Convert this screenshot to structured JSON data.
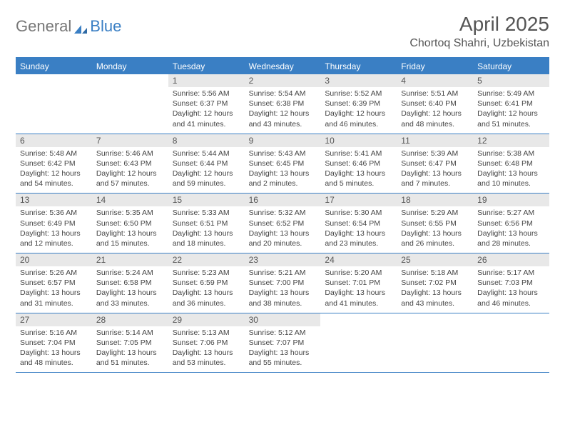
{
  "logo": {
    "part1": "General",
    "part2": "Blue"
  },
  "title": {
    "month": "April 2025",
    "location": "Chortoq Shahri, Uzbekistan"
  },
  "colors": {
    "primary": "#3a7fc4",
    "header_bg": "#3a7fc4",
    "daybar_bg": "#e8e8e8",
    "text": "#444444",
    "title_text": "#555555",
    "background": "#ffffff"
  },
  "days_of_week": [
    "Sunday",
    "Monday",
    "Tuesday",
    "Wednesday",
    "Thursday",
    "Friday",
    "Saturday"
  ],
  "weeks": [
    [
      null,
      null,
      {
        "n": "1",
        "sunrise": "5:56 AM",
        "sunset": "6:37 PM",
        "daylight": "12 hours and 41 minutes."
      },
      {
        "n": "2",
        "sunrise": "5:54 AM",
        "sunset": "6:38 PM",
        "daylight": "12 hours and 43 minutes."
      },
      {
        "n": "3",
        "sunrise": "5:52 AM",
        "sunset": "6:39 PM",
        "daylight": "12 hours and 46 minutes."
      },
      {
        "n": "4",
        "sunrise": "5:51 AM",
        "sunset": "6:40 PM",
        "daylight": "12 hours and 48 minutes."
      },
      {
        "n": "5",
        "sunrise": "5:49 AM",
        "sunset": "6:41 PM",
        "daylight": "12 hours and 51 minutes."
      }
    ],
    [
      {
        "n": "6",
        "sunrise": "5:48 AM",
        "sunset": "6:42 PM",
        "daylight": "12 hours and 54 minutes."
      },
      {
        "n": "7",
        "sunrise": "5:46 AM",
        "sunset": "6:43 PM",
        "daylight": "12 hours and 57 minutes."
      },
      {
        "n": "8",
        "sunrise": "5:44 AM",
        "sunset": "6:44 PM",
        "daylight": "12 hours and 59 minutes."
      },
      {
        "n": "9",
        "sunrise": "5:43 AM",
        "sunset": "6:45 PM",
        "daylight": "13 hours and 2 minutes."
      },
      {
        "n": "10",
        "sunrise": "5:41 AM",
        "sunset": "6:46 PM",
        "daylight": "13 hours and 5 minutes."
      },
      {
        "n": "11",
        "sunrise": "5:39 AM",
        "sunset": "6:47 PM",
        "daylight": "13 hours and 7 minutes."
      },
      {
        "n": "12",
        "sunrise": "5:38 AM",
        "sunset": "6:48 PM",
        "daylight": "13 hours and 10 minutes."
      }
    ],
    [
      {
        "n": "13",
        "sunrise": "5:36 AM",
        "sunset": "6:49 PM",
        "daylight": "13 hours and 12 minutes."
      },
      {
        "n": "14",
        "sunrise": "5:35 AM",
        "sunset": "6:50 PM",
        "daylight": "13 hours and 15 minutes."
      },
      {
        "n": "15",
        "sunrise": "5:33 AM",
        "sunset": "6:51 PM",
        "daylight": "13 hours and 18 minutes."
      },
      {
        "n": "16",
        "sunrise": "5:32 AM",
        "sunset": "6:52 PM",
        "daylight": "13 hours and 20 minutes."
      },
      {
        "n": "17",
        "sunrise": "5:30 AM",
        "sunset": "6:54 PM",
        "daylight": "13 hours and 23 minutes."
      },
      {
        "n": "18",
        "sunrise": "5:29 AM",
        "sunset": "6:55 PM",
        "daylight": "13 hours and 26 minutes."
      },
      {
        "n": "19",
        "sunrise": "5:27 AM",
        "sunset": "6:56 PM",
        "daylight": "13 hours and 28 minutes."
      }
    ],
    [
      {
        "n": "20",
        "sunrise": "5:26 AM",
        "sunset": "6:57 PM",
        "daylight": "13 hours and 31 minutes."
      },
      {
        "n": "21",
        "sunrise": "5:24 AM",
        "sunset": "6:58 PM",
        "daylight": "13 hours and 33 minutes."
      },
      {
        "n": "22",
        "sunrise": "5:23 AM",
        "sunset": "6:59 PM",
        "daylight": "13 hours and 36 minutes."
      },
      {
        "n": "23",
        "sunrise": "5:21 AM",
        "sunset": "7:00 PM",
        "daylight": "13 hours and 38 minutes."
      },
      {
        "n": "24",
        "sunrise": "5:20 AM",
        "sunset": "7:01 PM",
        "daylight": "13 hours and 41 minutes."
      },
      {
        "n": "25",
        "sunrise": "5:18 AM",
        "sunset": "7:02 PM",
        "daylight": "13 hours and 43 minutes."
      },
      {
        "n": "26",
        "sunrise": "5:17 AM",
        "sunset": "7:03 PM",
        "daylight": "13 hours and 46 minutes."
      }
    ],
    [
      {
        "n": "27",
        "sunrise": "5:16 AM",
        "sunset": "7:04 PM",
        "daylight": "13 hours and 48 minutes."
      },
      {
        "n": "28",
        "sunrise": "5:14 AM",
        "sunset": "7:05 PM",
        "daylight": "13 hours and 51 minutes."
      },
      {
        "n": "29",
        "sunrise": "5:13 AM",
        "sunset": "7:06 PM",
        "daylight": "13 hours and 53 minutes."
      },
      {
        "n": "30",
        "sunrise": "5:12 AM",
        "sunset": "7:07 PM",
        "daylight": "13 hours and 55 minutes."
      },
      null,
      null,
      null
    ]
  ],
  "labels": {
    "sunrise": "Sunrise:",
    "sunset": "Sunset:",
    "daylight": "Daylight:"
  }
}
